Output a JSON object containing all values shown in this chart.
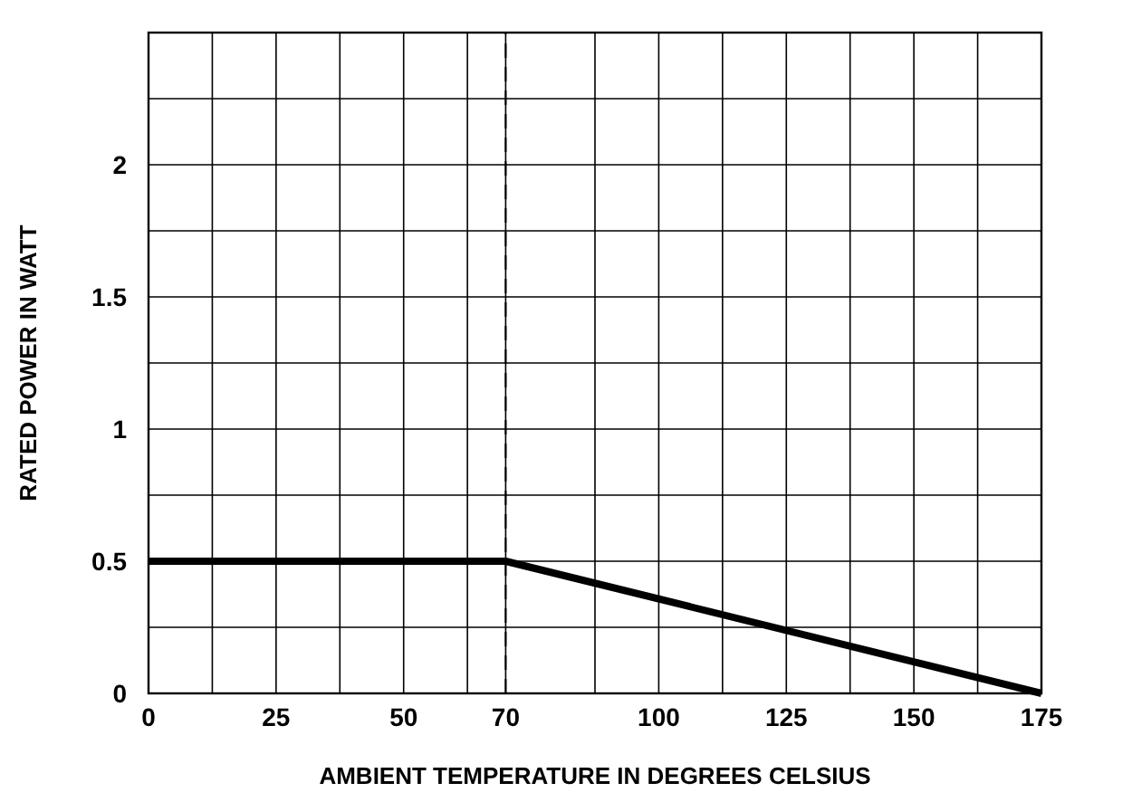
{
  "chart_data": {
    "type": "line",
    "xlabel": "AMBIENT TEMPERATURE IN DEGREES CELSIUS",
    "ylabel": "RATED POWER IN WATT",
    "x": [
      0,
      70,
      175
    ],
    "series": [
      {
        "color": "#000000",
        "values": [
          0.5,
          0.5,
          0
        ]
      }
    ],
    "xlim": [
      0,
      175
    ],
    "xticks": [
      0,
      {
        "value": 12.5,
        "label": null
      },
      25,
      {
        "value": 37.5,
        "label": null
      },
      50,
      {
        "value": 62.5,
        "label": null
      },
      70,
      {
        "value": 87.5,
        "label": null
      },
      100,
      {
        "value": 112.5,
        "label": null
      },
      125,
      {
        "value": 137.5,
        "label": null
      },
      150,
      {
        "value": 162.5,
        "label": null
      },
      175
    ],
    "ylim": [
      0,
      2.5
    ],
    "yticks": [
      0,
      {
        "value": 0.25,
        "label": null
      },
      0.5,
      {
        "value": 0.75,
        "label": null
      },
      1,
      {
        "value": 1.25,
        "label": null
      },
      1.5,
      {
        "value": 1.75,
        "label": null
      },
      2,
      {
        "value": 2.25,
        "label": null
      },
      {
        "value": 2.5,
        "label": null
      }
    ],
    "grid": true,
    "ref_lines": [
      {
        "axis": "x",
        "value": 70,
        "line_style": "dashed",
        "color": "#000000"
      }
    ]
  }
}
